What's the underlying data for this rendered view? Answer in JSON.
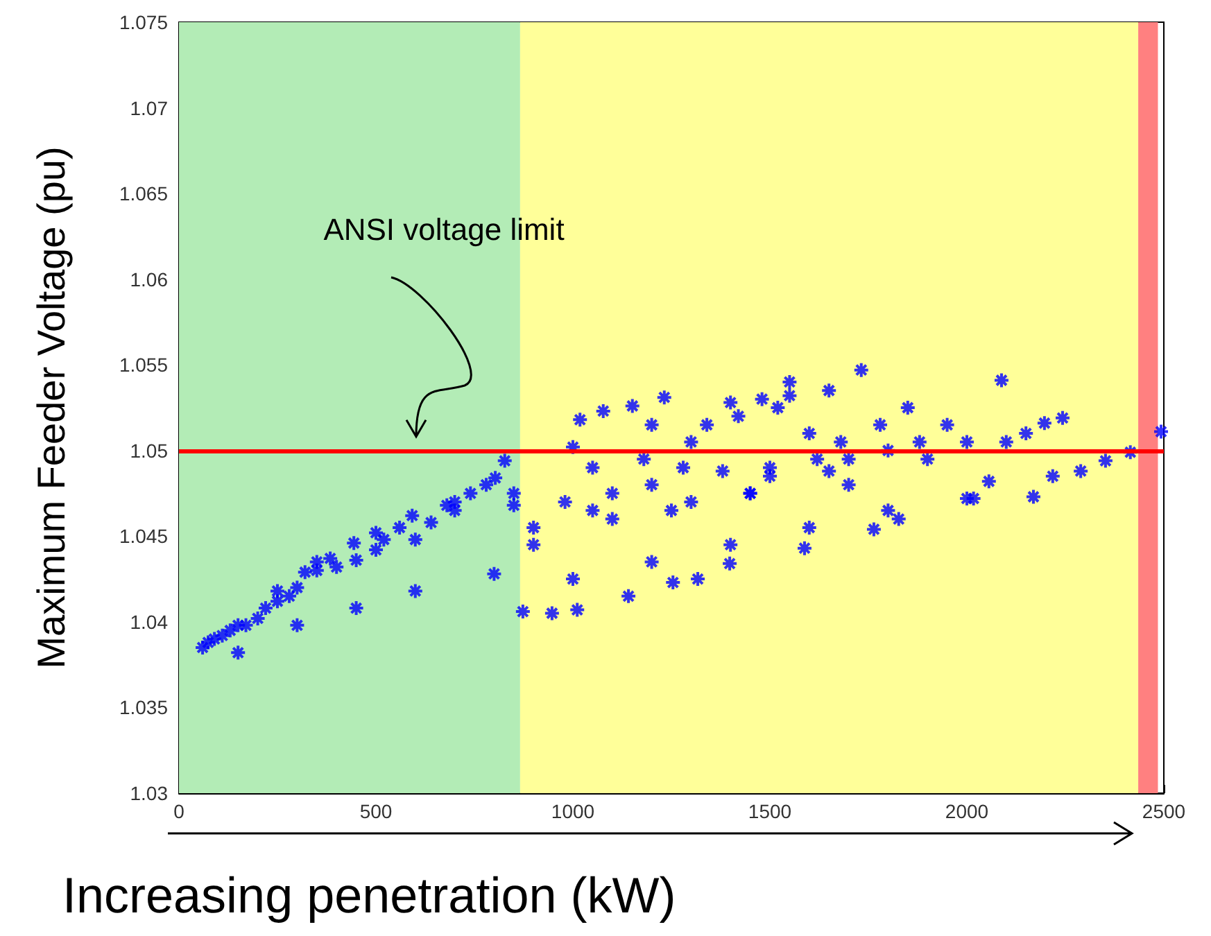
{
  "chart_data": {
    "type": "scatter",
    "xlabel": "Increasing penetration (kW)",
    "ylabel": "Maximum Feeder Voltage (pu)",
    "xlim": [
      0,
      2500
    ],
    "xticks": [
      0,
      500,
      1000,
      1500,
      2000,
      2500
    ],
    "ylim": [
      1.03,
      1.075
    ],
    "yticks": [
      1.03,
      1.035,
      1.04,
      1.045,
      1.05,
      1.055,
      1.06,
      1.065,
      1.07,
      1.075
    ],
    "grid": false,
    "marker": "cross",
    "ref_lines": [
      {
        "axis": "y",
        "value": 1.05,
        "color": "#ff0000"
      }
    ],
    "bands": [
      {
        "axis": "x",
        "from": 0,
        "to": 866,
        "color": "#b3ecb6"
      },
      {
        "axis": "x",
        "from": 866,
        "to": 2435,
        "color": "#ffff99"
      },
      {
        "axis": "x",
        "from": 2435,
        "to": 2485,
        "color": "#ff8080"
      }
    ],
    "annotations": [
      "ANSI voltage limit"
    ],
    "series": [
      {
        "color": "#0000ff",
        "x": [
          60,
          74,
          90,
          110,
          130,
          150,
          170,
          200,
          220,
          250,
          280,
          300,
          320,
          350,
          384,
          400,
          444,
          450,
          500,
          520,
          560,
          592,
          600,
          640,
          680,
          700,
          740,
          780,
          803,
          827,
          850,
          873,
          900,
          947,
          980,
          1011,
          1018,
          1050,
          1077,
          1100,
          1141,
          1151,
          1180,
          1200,
          1232,
          1254,
          1280,
          1300,
          1317,
          1340,
          1380,
          1398,
          1420,
          1450,
          1480,
          1500,
          1520,
          1550,
          1588,
          1600,
          1620,
          1650,
          1680,
          1700,
          1732,
          1764,
          1780,
          1800,
          1827,
          1850,
          1880,
          1900,
          1950,
          2000,
          2017,
          2056,
          2088,
          2100,
          2150,
          2169,
          2197,
          2218,
          2243,
          2289,
          2352,
          2415,
          2493,
          150,
          300,
          450,
          600,
          800,
          1000,
          1200,
          1400,
          1600,
          1800,
          2000,
          250,
          350,
          500,
          700,
          850,
          1000,
          1200,
          1400,
          1550,
          1100,
          1300,
          1500,
          1700,
          900,
          1050,
          1250,
          1450,
          1650
        ],
        "values": [
          1.0385,
          1.0388,
          1.039,
          1.0392,
          1.0395,
          1.0398,
          1.0398,
          1.0402,
          1.0408,
          1.0412,
          1.0415,
          1.042,
          1.0429,
          1.043,
          1.0437,
          1.0432,
          1.0446,
          1.0436,
          1.0442,
          1.0448,
          1.0455,
          1.0462,
          1.0448,
          1.0458,
          1.0468,
          1.047,
          1.0475,
          1.048,
          1.0484,
          1.0494,
          1.0468,
          1.0406,
          1.0455,
          1.0405,
          1.047,
          1.0407,
          1.0518,
          1.049,
          1.0523,
          1.0475,
          1.0415,
          1.0526,
          1.0495,
          1.048,
          1.0531,
          1.0423,
          1.049,
          1.0505,
          1.0425,
          1.0515,
          1.0488,
          1.0434,
          1.052,
          1.0475,
          1.053,
          1.049,
          1.0525,
          1.054,
          1.0443,
          1.051,
          1.0495,
          1.0535,
          1.0505,
          1.048,
          1.0547,
          1.0454,
          1.0515,
          1.05,
          1.046,
          1.0525,
          1.0505,
          1.0495,
          1.0515,
          1.0505,
          1.0472,
          1.0482,
          1.0541,
          1.0505,
          1.051,
          1.0473,
          1.0516,
          1.0485,
          1.0519,
          1.0488,
          1.0494,
          1.0499,
          1.0511,
          1.0382,
          1.0398,
          1.0408,
          1.0418,
          1.0428,
          1.0425,
          1.0435,
          1.0445,
          1.0455,
          1.0465,
          1.0472,
          1.0418,
          1.0435,
          1.0452,
          1.0465,
          1.0475,
          1.0502,
          1.0515,
          1.0528,
          1.0532,
          1.046,
          1.047,
          1.0485,
          1.0495,
          1.0445,
          1.0465,
          1.0465,
          1.0475,
          1.0488
        ]
      }
    ]
  }
}
